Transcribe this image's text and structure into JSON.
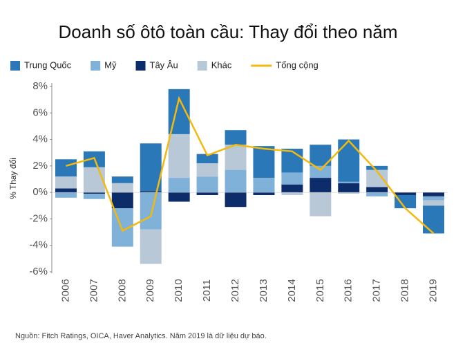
{
  "chart_data": {
    "type": "bar",
    "stacked": true,
    "title": "Doanh số ôtô toàn cầu: Thay đổi theo năm",
    "y_label": "% Thay đổi",
    "source": "Nguồn: Fitch Ratings, OICA, Haver Analytics.  Năm 2019 là dữ liệu dự báo.",
    "categories": [
      "2006",
      "2007",
      "2008",
      "2009",
      "2010",
      "2011",
      "2012",
      "2013",
      "2014",
      "2015",
      "2016",
      "2017",
      "2018",
      "2019"
    ],
    "series": [
      {
        "name": "Trung Quốc",
        "color": "#2b78b8",
        "values": [
          1.3,
          1.2,
          0.5,
          3.6,
          3.4,
          0.7,
          1.1,
          2.4,
          1.8,
          1.6,
          3.2,
          0.3,
          -1.0,
          -2.1
        ]
      },
      {
        "name": "Mỹ",
        "color": "#80b1d9",
        "values": [
          -0.4,
          -0.4,
          -2.9,
          -2.8,
          1.1,
          1.2,
          1.7,
          1.1,
          0.9,
          0.9,
          0.1,
          -0.3,
          0,
          -0.3
        ]
      },
      {
        "name": "Tây Âu",
        "color": "#0c2d69",
        "values": [
          0.3,
          -0.1,
          -1.2,
          0.1,
          -0.7,
          -0.2,
          -1.1,
          -0.2,
          0.6,
          1.1,
          0.7,
          0.4,
          -0.2,
          -0.3
        ]
      },
      {
        "name": "Khác",
        "color": "#b9c8d7",
        "values": [
          0.9,
          1.9,
          0.7,
          -2.6,
          3.3,
          1.0,
          1.9,
          0,
          -0.2,
          -1.8,
          -0.1,
          1.3,
          0,
          -0.4
        ]
      },
      {
        "name": "Tổng cộng",
        "type": "line",
        "color": "#f2b90f",
        "values": [
          2.0,
          2.6,
          -2.9,
          -1.8,
          7.1,
          2.8,
          3.6,
          3.3,
          3.1,
          1.7,
          3.9,
          1.6,
          -1.2,
          -3.1
        ]
      }
    ],
    "ylim": [
      -6,
      8
    ],
    "yticks": [
      {
        "value": 8,
        "label": "8%"
      },
      {
        "value": 6,
        "label": "6%"
      },
      {
        "value": 4,
        "label": "4%"
      },
      {
        "value": 2,
        "label": "2%"
      },
      {
        "value": 0,
        "label": "0%"
      },
      {
        "value": -2,
        "label": "-2%"
      },
      {
        "value": -4,
        "label": "-4%"
      },
      {
        "value": -6,
        "label": "-6%"
      }
    ],
    "grid": false
  }
}
